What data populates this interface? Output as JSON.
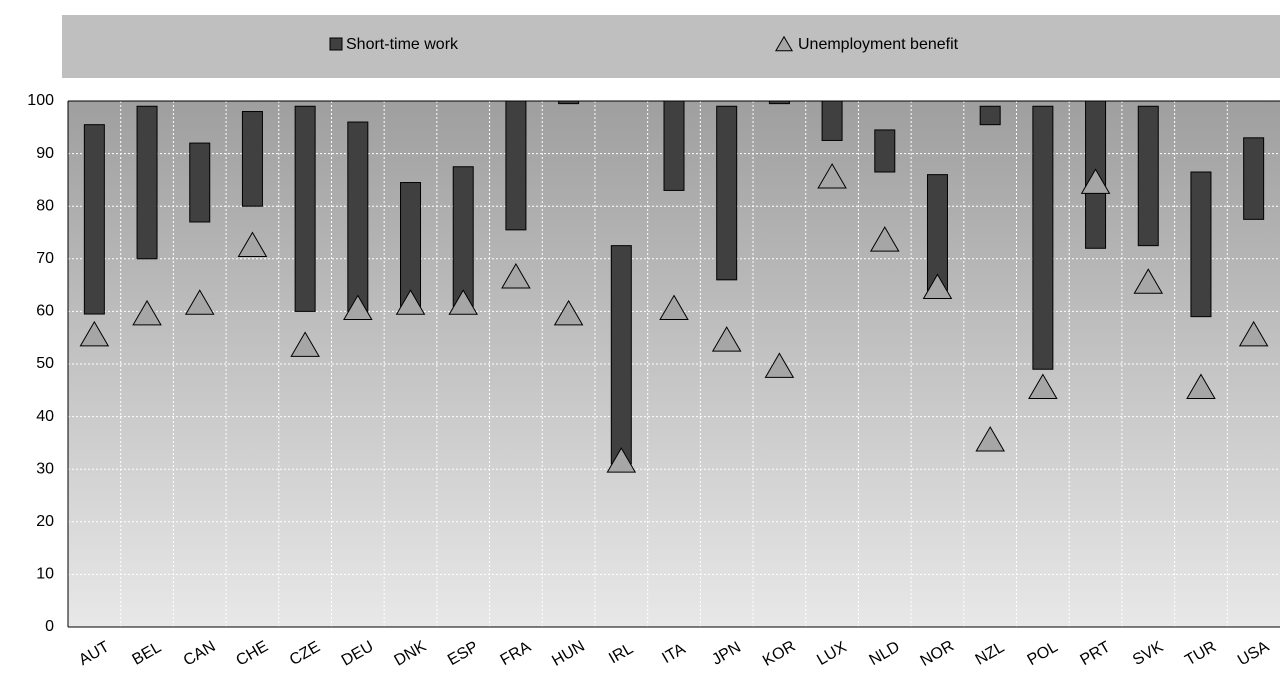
{
  "chart_data": {
    "type": "bar",
    "categories": [
      "AUT",
      "BEL",
      "CAN",
      "CHE",
      "CZE",
      "DEU",
      "DNK",
      "ESP",
      "FRA",
      "HUN",
      "IRL",
      "ITA",
      "JPN",
      "KOR",
      "LUX",
      "NLD",
      "NOR",
      "NZL",
      "POL",
      "PRT",
      "SVK",
      "TUR",
      "USA"
    ],
    "series": [
      {
        "name": "Short-time work",
        "color": "#404040",
        "low": [
          59.5,
          70,
          77,
          80,
          60,
          60,
          61,
          61,
          75.5,
          99.5,
          31,
          83,
          66,
          99.5,
          92.5,
          86.5,
          64,
          95.5,
          49,
          72,
          72.5,
          59,
          77.5
        ],
        "high": [
          95.5,
          99,
          92,
          98,
          99,
          96,
          84.5,
          87.5,
          100,
          100,
          72.5,
          100,
          99,
          100,
          100,
          94.5,
          86,
          99,
          99,
          100,
          99,
          86.5,
          93
        ]
      },
      {
        "name": "Unemployment benefit",
        "color": "#a6a6a6",
        "values": [
          55,
          59,
          61,
          72,
          53,
          60,
          61,
          61,
          66,
          59,
          31,
          60,
          54,
          49,
          85,
          73,
          64,
          35,
          45,
          84,
          65,
          45,
          55
        ]
      }
    ],
    "ylim": [
      0,
      100
    ],
    "yticks": [
      0,
      10,
      20,
      30,
      40,
      50,
      60,
      70,
      80,
      90,
      100
    ],
    "grid": true
  }
}
